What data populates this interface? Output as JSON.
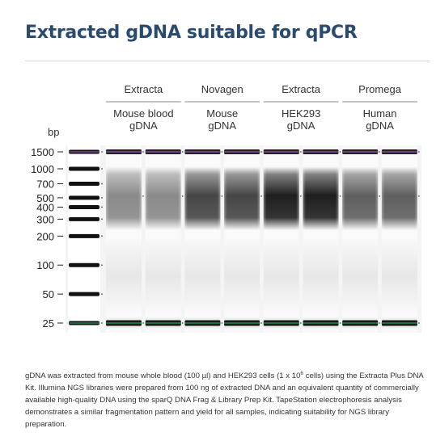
{
  "title": "Extracted gDNA suitable for qPCR",
  "caption": {
    "part1": "gDNA was extracted from mouse whole blood (100 µl) and HEK293 cells (1 x 10",
    "exponent": "6",
    "part2": " cells) using the Extracta Plus DNA Kit. Illumina NGS libraries were prepared from 100 ng of extracted DNA and an equivalent quantity of commercially available high-quality DNA using the sparQ DNA Frag & Library Prep Kit. TapeStation electrophoresis analysis demonstrates a similar fragmentation pattern and yield for all samples, indicating suitability for NGS library preparation."
  },
  "colors": {
    "title": "#2a4a6e",
    "upper_marker": "#7a3f8a",
    "lower_marker": "#1f7a3f"
  },
  "chart_data": {
    "type": "gel",
    "y_unit_label": "bp",
    "y_scale": "log",
    "ladder_bp": [
      1500,
      1000,
      700,
      500,
      400,
      300,
      200,
      100,
      50,
      25
    ],
    "ladder_labels": [
      "1500",
      "1000",
      "700",
      "500",
      "400",
      "300",
      "200",
      "100",
      "50",
      "25"
    ],
    "upper_marker_bp": 1500,
    "lower_marker_bp": 25,
    "groups": [
      {
        "source": "Extracta",
        "sample": [
          "Mouse blood",
          "gDNA"
        ],
        "lanes": 2,
        "intensity": 0.45
      },
      {
        "source": "Novagen",
        "sample": [
          "Mouse",
          "gDNA"
        ],
        "lanes": 2,
        "intensity": 0.72
      },
      {
        "source": "Extracta",
        "sample": [
          "HEK293",
          "gDNA"
        ],
        "lanes": 2,
        "intensity": 0.88
      },
      {
        "source": "Promega",
        "sample": [
          "Human",
          "gDNA"
        ],
        "lanes": 2,
        "intensity": 0.62
      }
    ]
  }
}
